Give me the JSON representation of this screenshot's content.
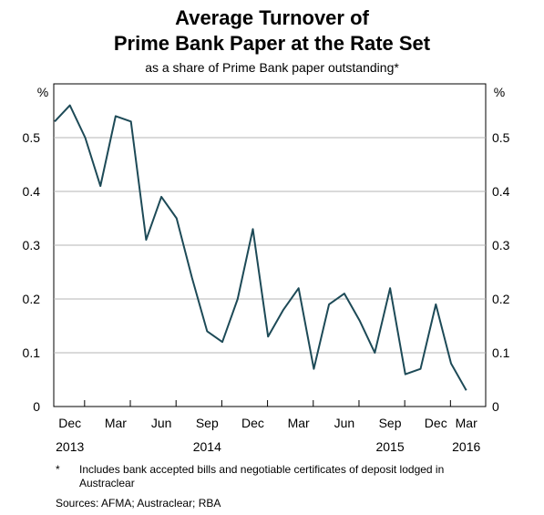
{
  "chart_data": {
    "type": "line",
    "title_lines": [
      "Average Turnover of",
      "Prime Bank Paper at the Rate Set"
    ],
    "subtitle": "as a share of Prime Bank paper outstanding*",
    "y_unit_left": "%",
    "y_unit_right": "%",
    "ylim": [
      0,
      0.6
    ],
    "yticks": [
      0,
      0.1,
      0.2,
      0.3,
      0.4,
      0.5
    ],
    "ytick_labels_left": [
      "0",
      "0.1",
      "0.2",
      "0.3",
      "0.4",
      "0.5"
    ],
    "ytick_labels_right": [
      "0",
      "0.1",
      "0.2",
      "0.3",
      "0.4",
      "0.5"
    ],
    "grid": true,
    "x_month_labels": [
      "Dec",
      "Mar",
      "Jun",
      "Sep",
      "Dec",
      "Mar",
      "Jun",
      "Sep",
      "Dec",
      "Mar"
    ],
    "x_year_labels": [
      {
        "label": "2013",
        "under": "Dec"
      },
      {
        "label": "2014",
        "under": "Sep"
      },
      {
        "label": "2015",
        "under": "Sep"
      },
      {
        "label": "2016",
        "under": "Mar"
      }
    ],
    "series": [
      {
        "color": "#1d4a57",
        "x": [
          "Dec 2013",
          "Jan 2014",
          "Feb 2014",
          "Mar 2014",
          "Apr 2014",
          "May 2014",
          "Jun 2014",
          "Jul 2014",
          "Aug 2014",
          "Sep 2014",
          "Oct 2014",
          "Nov 2014",
          "Dec 2014",
          "Jan 2015",
          "Feb 2015",
          "Mar 2015",
          "Apr 2015",
          "May 2015",
          "Jun 2015",
          "Jul 2015",
          "Aug 2015",
          "Sep 2015",
          "Oct 2015",
          "Nov 2015",
          "Dec 2015",
          "Jan 2016",
          "Feb 2016",
          "Mar 2016"
        ],
        "values": [
          0.53,
          0.56,
          0.5,
          0.41,
          0.54,
          0.53,
          0.31,
          0.39,
          0.35,
          0.24,
          0.14,
          0.12,
          0.2,
          0.33,
          0.13,
          0.18,
          0.22,
          0.07,
          0.19,
          0.21,
          0.16,
          0.1,
          0.22,
          0.06,
          0.07,
          0.19,
          0.08,
          0.03
        ]
      }
    ]
  },
  "footnote": {
    "marker": "*",
    "text": "Includes bank accepted bills and negotiable certificates of deposit lodged in Austraclear"
  },
  "sources": "Sources:   AFMA; Austraclear; RBA"
}
